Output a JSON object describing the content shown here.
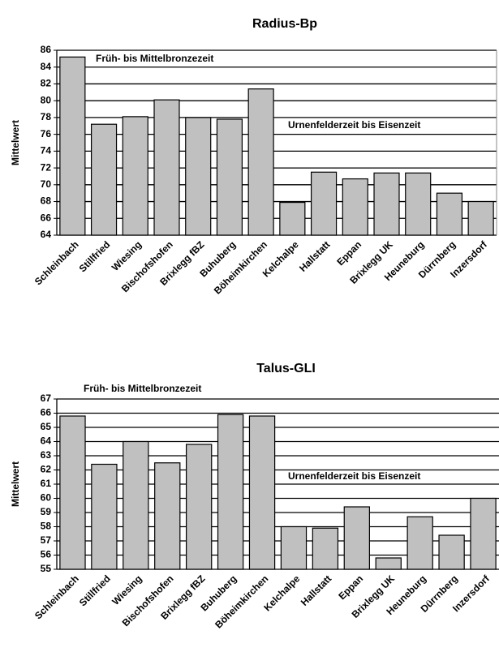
{
  "chart_data": [
    {
      "type": "bar",
      "title": "Radius-Bp",
      "y_label": "Mittelwert",
      "annotations": [
        "Früh- bis Mittelbronzezeit",
        "Urnenfelderzeit bis Eisenzeit"
      ],
      "categories": [
        "Schleinbach",
        "Stillfried",
        "Wiesing",
        "Bischofshofen",
        "Brixlegg fBZ",
        "Buhuberg",
        "Böheimkirchen",
        "Kelchalpe",
        "Hallstatt",
        "Eppan",
        "Brixlegg UK",
        "Heuneburg",
        "Dürrnberg",
        "Inzersdorf"
      ],
      "values": [
        85.2,
        77.2,
        78.1,
        80.1,
        78.0,
        77.8,
        81.4,
        67.9,
        71.5,
        70.7,
        71.4,
        71.4,
        69.0,
        68.0
      ],
      "color": "#c0c0c0",
      "ylim": [
        64,
        86
      ],
      "yticks": [
        64,
        66,
        68,
        70,
        72,
        74,
        76,
        78,
        80,
        82,
        84,
        86
      ],
      "grid": true
    },
    {
      "type": "bar",
      "title": "Talus-GLI",
      "y_label": "Mittelwert",
      "annotations": [
        "Früh- bis Mittelbronzezeit",
        "Urnenfelderzeit bis Eisenzeit"
      ],
      "categories": [
        "Schleinbach",
        "Stillfried",
        "Wiesing",
        "Bischofshofen",
        "Brixlegg fBZ",
        "Buhuberg",
        "Böheimkirchen",
        "Kelchalpe",
        "Hallstatt",
        "Eppan",
        "Brixlegg UK",
        "Heuneburg",
        "Dürrnberg",
        "Inzersdorf"
      ],
      "values": [
        65.8,
        62.4,
        64.0,
        62.5,
        63.8,
        65.9,
        65.8,
        58.0,
        57.9,
        59.4,
        55.8,
        58.7,
        57.4,
        60.0
      ],
      "color": "#c0c0c0",
      "ylim": [
        55,
        67
      ],
      "yticks": [
        55,
        56,
        57,
        58,
        59,
        60,
        61,
        62,
        63,
        64,
        65,
        66,
        67
      ],
      "grid": true
    }
  ]
}
